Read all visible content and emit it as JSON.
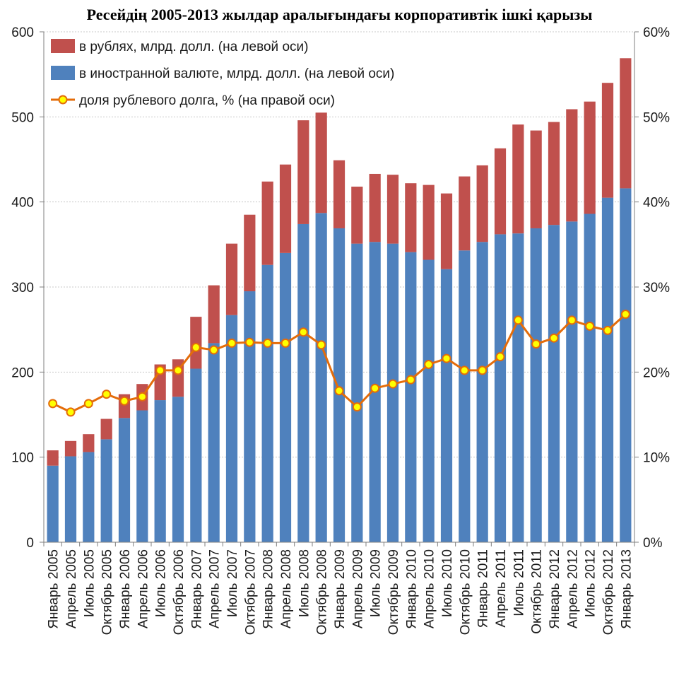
{
  "chart_data": {
    "type": "bar",
    "title": "Ресейдің 2005-2013 жылдар аралығындағы корпоративтік ішкі қарызы",
    "stacked": true,
    "categories": [
      "Январь 2005",
      "Апрель 2005",
      "Июль 2005",
      "Октябрь 2005",
      "Январь 2006",
      "Апрель 2006",
      "Июль 2006",
      "Октябрь 2006",
      "Январь 2007",
      "Апрель 2007",
      "Июль 2007",
      "Октябрь 2007",
      "Январь 2008",
      "Апрель 2008",
      "Июль 2008",
      "Октябрь 2008",
      "Январь 2009",
      "Апрель 2009",
      "Июль 2009",
      "Октябрь 2009",
      "Январь 2010",
      "Апрель 2010",
      "Июль 2010",
      "Октябрь 2010",
      "Январь 2011",
      "Апрель 2011",
      "Июль 2011",
      "Октябрь 2011",
      "Январь 2012",
      "Апрель 2012",
      "Июль 2012",
      "Октябрь 2012",
      "Январь 2013"
    ],
    "series": [
      {
        "name": "в иностранной валюте, млрд. долл. (на левой оси)",
        "kind": "bar",
        "axis": "left",
        "color": "#4f81bd",
        "values": [
          90,
          101,
          106,
          121,
          146,
          155,
          167,
          171,
          204,
          234,
          267,
          295,
          326,
          340,
          374,
          387,
          369,
          351,
          353,
          351,
          341,
          332,
          321,
          343,
          353,
          362,
          363,
          369,
          373,
          377,
          386,
          405,
          416
        ]
      },
      {
        "name": "в рублях, млрд. долл. (на левой оси)",
        "kind": "bar",
        "axis": "left",
        "color": "#c0504d",
        "values": [
          18,
          18,
          21,
          24,
          28,
          31,
          42,
          44,
          61,
          68,
          84,
          90,
          98,
          104,
          122,
          118,
          80,
          67,
          80,
          81,
          81,
          88,
          89,
          87,
          90,
          101,
          128,
          115,
          121,
          132,
          132,
          135,
          153
        ]
      },
      {
        "name": "доля рублевого долга, % (на правой оси)",
        "kind": "line",
        "axis": "right",
        "color": "#e46c0a",
        "marker_color": "#ffff00",
        "values": [
          16.3,
          15.3,
          16.3,
          17.4,
          16.6,
          17.1,
          20.2,
          20.2,
          22.9,
          22.6,
          23.4,
          23.5,
          23.4,
          23.4,
          24.7,
          23.2,
          17.8,
          15.9,
          18.1,
          18.6,
          19.1,
          20.9,
          21.6,
          20.2,
          20.2,
          21.8,
          26.1,
          23.3,
          24.0,
          26.1,
          25.4,
          24.9,
          26.8
        ]
      }
    ],
    "y_left": {
      "ylim": [
        0,
        600
      ],
      "ticks": [
        0,
        100,
        200,
        300,
        400,
        500,
        600
      ],
      "tick_labels": [
        "0",
        "100",
        "200",
        "300",
        "400",
        "500",
        "600"
      ]
    },
    "y_right": {
      "ylim": [
        0,
        60
      ],
      "ticks": [
        0,
        10,
        20,
        30,
        40,
        50,
        60
      ],
      "tick_labels": [
        "0%",
        "10%",
        "20%",
        "30%",
        "40%",
        "50%",
        "60%"
      ]
    },
    "legend": {
      "position": "top-left",
      "entries": [
        "в рублях, млрд. долл. (на левой оси)",
        "в иностранной валюте, млрд. долл. (на левой оси)",
        "доля рублевого долга, % (на правой оси)"
      ]
    },
    "grid": true
  }
}
